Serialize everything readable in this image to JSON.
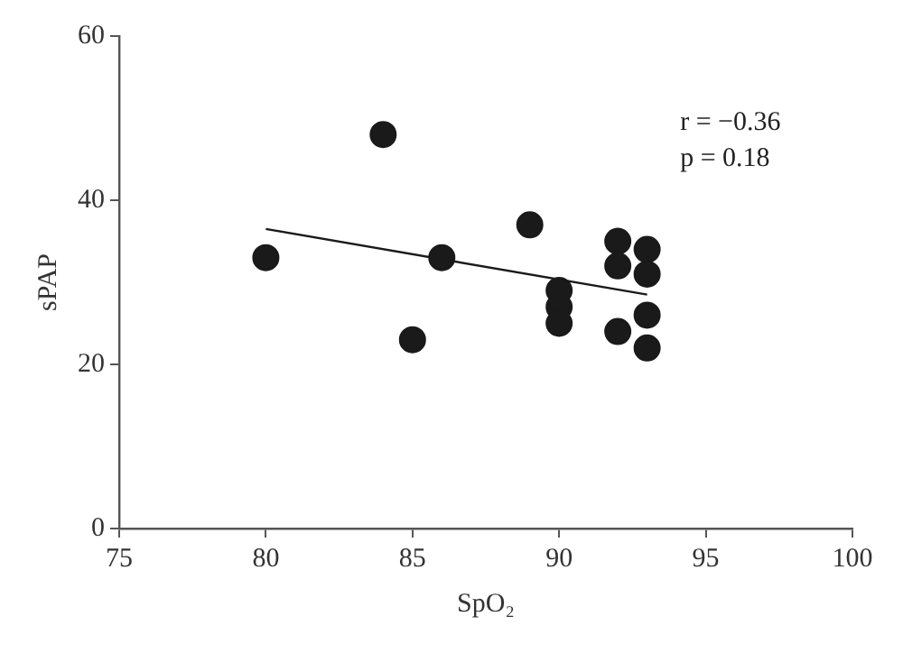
{
  "chart_data": {
    "type": "scatter",
    "xlabel": "SpO₂",
    "ylabel": "sPAP",
    "xlim": [
      75,
      100
    ],
    "xticks": [
      75,
      80,
      85,
      90,
      95,
      100
    ],
    "ylim": [
      0,
      60
    ],
    "yticks": [
      0,
      20,
      40,
      60
    ],
    "grid": false,
    "legend": false,
    "marker": "circle",
    "series": [
      {
        "color": "#1a1a1a",
        "x": [
          80,
          84,
          85,
          86,
          89,
          90,
          90,
          90,
          92,
          92,
          92,
          93,
          93,
          93,
          93
        ],
        "values": [
          33,
          48,
          23,
          33,
          37,
          29,
          27,
          25,
          35,
          32,
          24,
          34,
          31,
          26,
          22
        ]
      },
      {
        "type": "line",
        "color": "#1a1a1a",
        "x": [
          80,
          93
        ],
        "values": [
          36.5,
          28.5
        ],
        "marker": "none",
        "line_style": "solid"
      }
    ],
    "annotations": [
      "r = −0.36",
      "p = 0.18"
    ]
  }
}
